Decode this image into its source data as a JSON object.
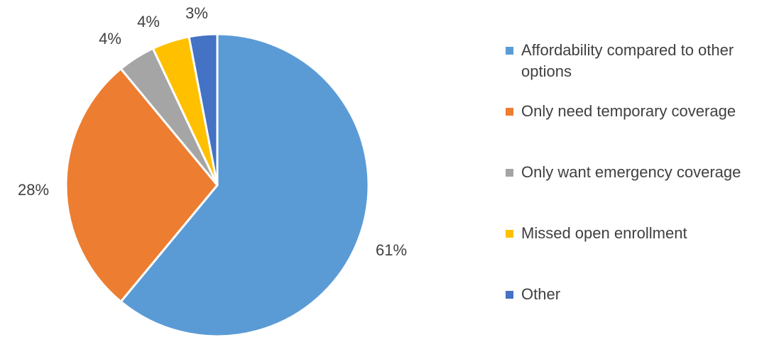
{
  "chart_data": {
    "type": "pie",
    "categories": [
      "Affordability compared to other options",
      "Only need temporary coverage",
      "Only want emergency coverage",
      "Missed open enrollment",
      "Other"
    ],
    "values": [
      61,
      28,
      4,
      4,
      3
    ],
    "labels": [
      "61%",
      "28%",
      "4%",
      "4%",
      "3%"
    ],
    "colors": [
      "#5B9BD5",
      "#ED7D31",
      "#A5A5A5",
      "#FFC000",
      "#4472C4"
    ],
    "legend_position": "right",
    "title": ""
  }
}
